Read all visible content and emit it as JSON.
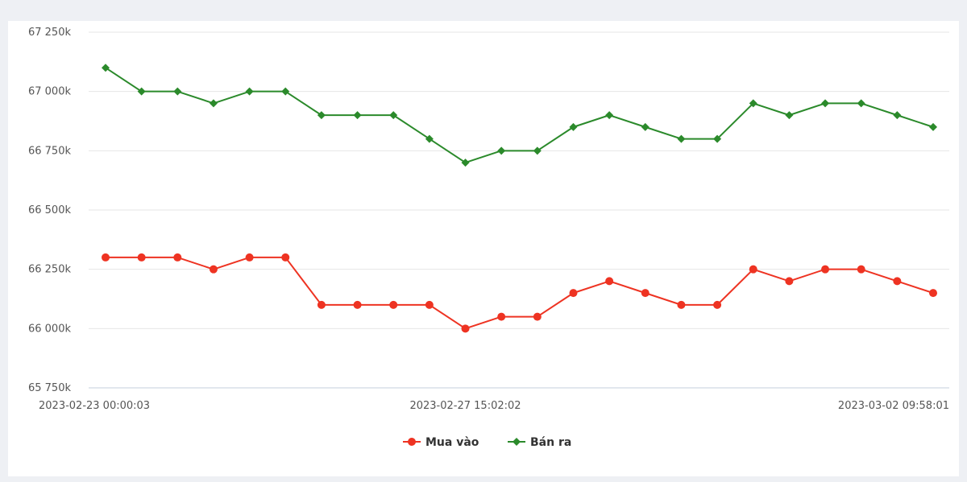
{
  "chart_data": {
    "type": "line",
    "title": "",
    "xlabel": "",
    "ylabel": "",
    "ylim": [
      65750,
      67250
    ],
    "y_ticks": [
      65750,
      66000,
      66250,
      66500,
      66750,
      67000,
      67250
    ],
    "y_tick_labels": [
      "65 750k",
      "66 000k",
      "66 250k",
      "66 500k",
      "66 750k",
      "67 000k",
      "67 250k"
    ],
    "x_tick_labels": [
      {
        "index": 0,
        "label": "2023-02-23 00:00:03"
      },
      {
        "index": 10,
        "label": "2023-02-27 15:02:02"
      },
      {
        "index": 23,
        "label": "2023-03-02 09:58:01"
      }
    ],
    "grid": true,
    "legend_position": "bottom-center",
    "series": [
      {
        "name": "Mua vào",
        "color": "#ee3322",
        "marker": "circle",
        "values": [
          66300,
          66300,
          66300,
          66250,
          66300,
          66300,
          66100,
          66100,
          66100,
          66100,
          66000,
          66050,
          66050,
          66150,
          66200,
          66150,
          66100,
          66100,
          66250,
          66200,
          66250,
          66250,
          66200,
          66150
        ]
      },
      {
        "name": "Bán ra",
        "color": "#2b8a2b",
        "marker": "diamond",
        "values": [
          67100,
          67000,
          67000,
          66950,
          67000,
          67000,
          66900,
          66900,
          66900,
          66800,
          66700,
          66750,
          66750,
          66850,
          66900,
          66850,
          66800,
          66800,
          66950,
          66900,
          66950,
          66950,
          66900,
          66850
        ]
      }
    ]
  }
}
